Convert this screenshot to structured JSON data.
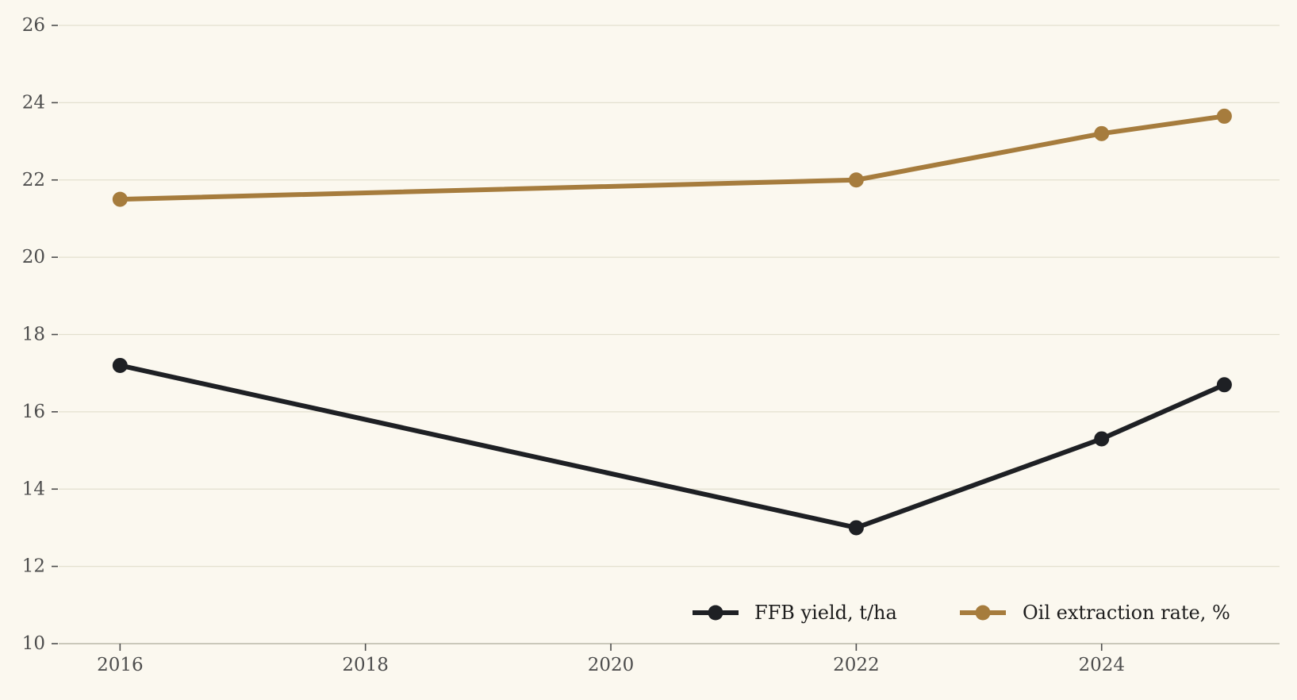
{
  "chart_data": {
    "type": "line",
    "title": "",
    "xlabel": "",
    "ylabel": "",
    "xlim": [
      2015.5,
      2025.45
    ],
    "ylim": [
      10,
      26
    ],
    "xticks": [
      "2016",
      "2018",
      "2020",
      "2022",
      "2024"
    ],
    "yticks": [
      "10",
      "12",
      "14",
      "16",
      "18",
      "20",
      "22",
      "24",
      "26"
    ],
    "grid": "horizontal",
    "legend_position": "bottom-right",
    "series": [
      {
        "name": "FFB yield, t/ha",
        "color": "#1e2024",
        "x": [
          2016,
          2022,
          2024,
          2025
        ],
        "values": [
          17.2,
          13.0,
          15.3,
          16.7
        ]
      },
      {
        "name": "Oil extraction rate, %",
        "color": "#a67c3d",
        "x": [
          2016,
          2022,
          2024,
          2025
        ],
        "values": [
          21.5,
          22.0,
          23.2,
          23.65
        ]
      }
    ]
  }
}
